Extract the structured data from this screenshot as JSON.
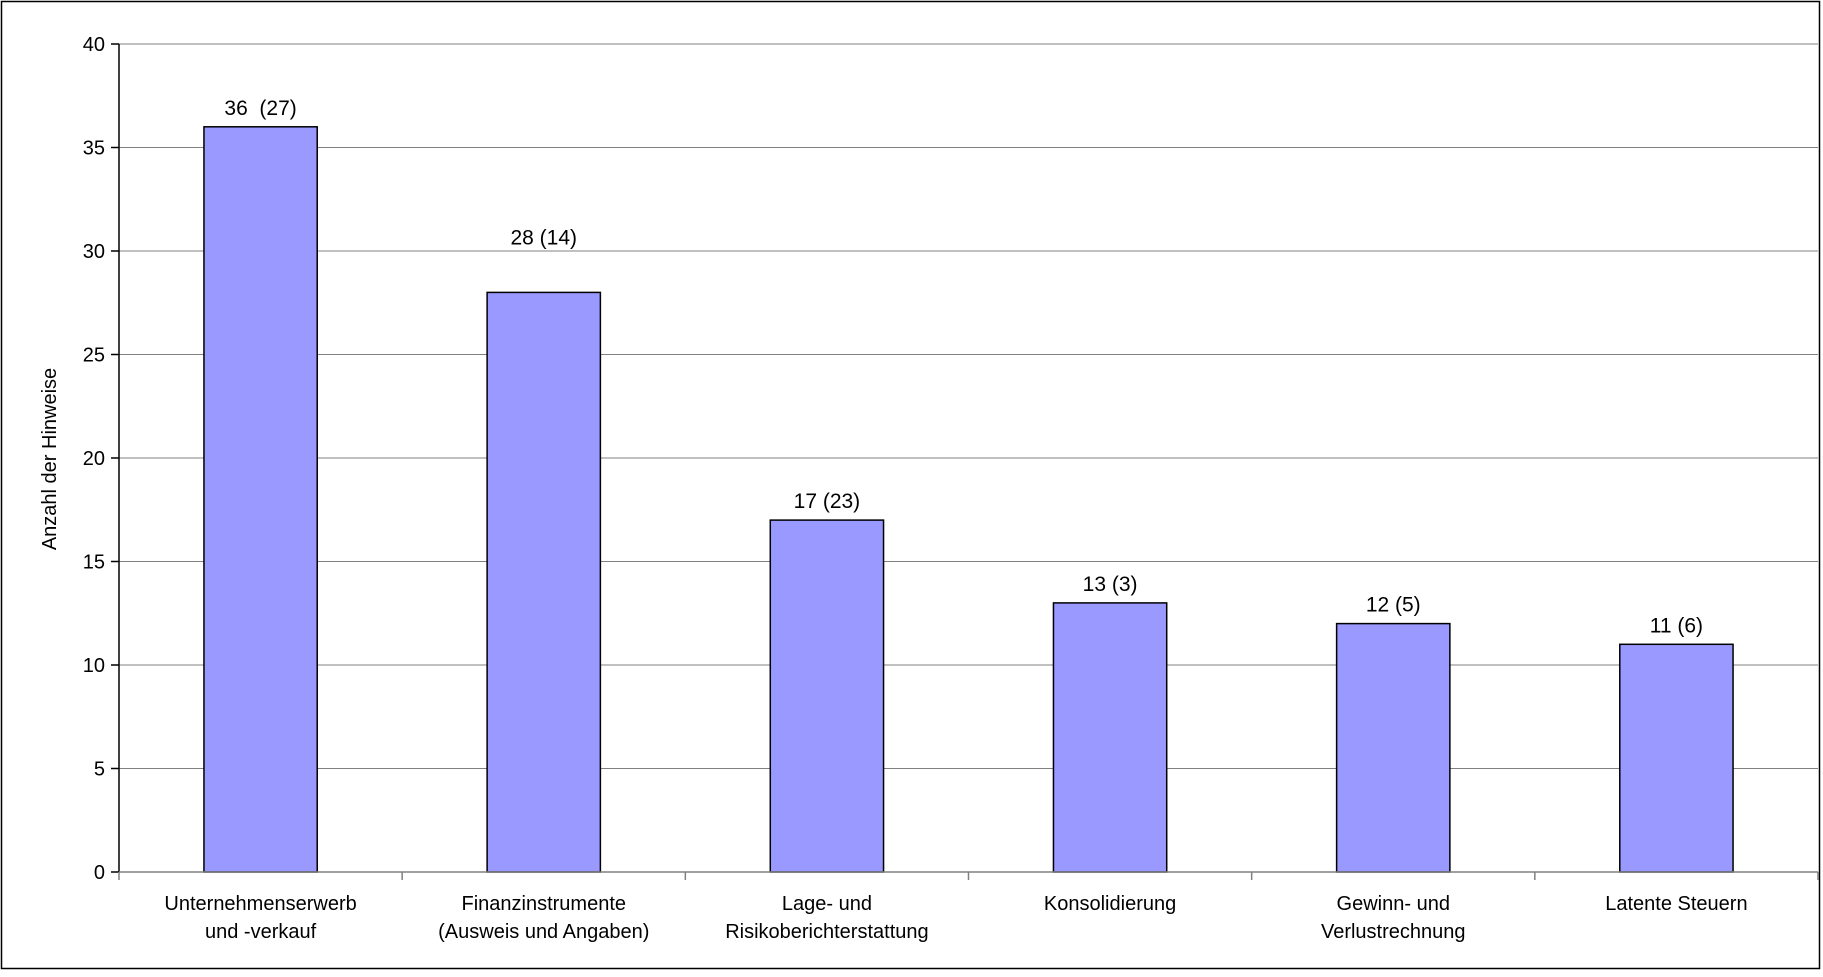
{
  "chart_data": {
    "type": "bar",
    "title": "",
    "xlabel": "",
    "ylabel": "Anzahl der Hinweise",
    "ylim": [
      0,
      40
    ],
    "yticks": [
      0,
      5,
      10,
      15,
      20,
      25,
      30,
      35,
      40
    ],
    "grid": true,
    "legend": "none",
    "bar_color": "#9999ff",
    "categories": [
      [
        "Unternehmenserwerb",
        "und -verkauf"
      ],
      [
        "Finanzinstrumente",
        "(Ausweis und Angaben)"
      ],
      [
        "Lage- und",
        "Risikoberichterstattung"
      ],
      [
        "Konsolidierung"
      ],
      [
        "Gewinn- und",
        "Verlustrechnung"
      ],
      [
        "Latente Steuern"
      ]
    ],
    "values": [
      36,
      28,
      17,
      13,
      12,
      11
    ],
    "data_labels": [
      "36  (27)",
      "28 (14)",
      "17 (23)",
      "13 (3)",
      "12 (5)",
      "11 (6)"
    ]
  }
}
